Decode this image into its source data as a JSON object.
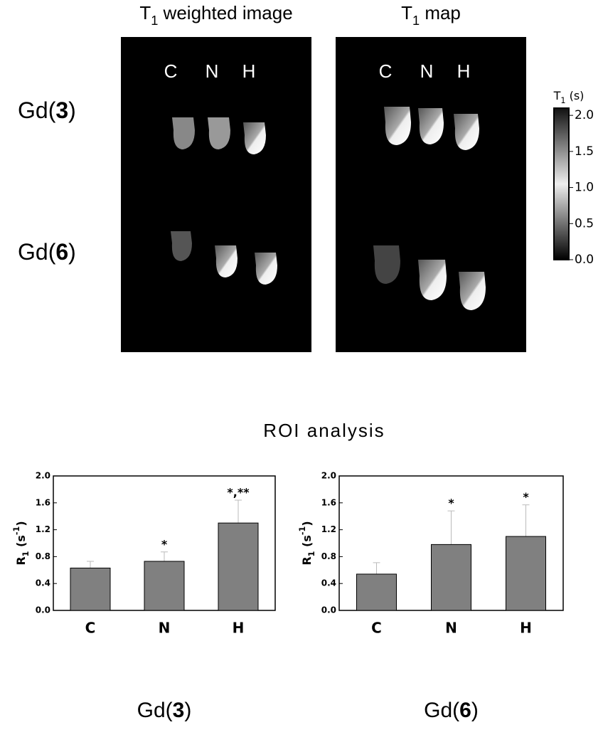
{
  "figure": {
    "columns": [
      {
        "title": [
          "T",
          "1",
          " weighted image"
        ]
      },
      {
        "title": [
          "T",
          "1",
          " map"
        ]
      }
    ],
    "lanes": [
      "C",
      "N",
      "H"
    ],
    "rows": [
      [
        "Gd(",
        "3",
        ")"
      ],
      [
        "Gd(",
        "6",
        ")"
      ]
    ],
    "colorbar": {
      "label": [
        "T",
        "1",
        " (s)"
      ],
      "lim": [
        0,
        2.1
      ],
      "ticks": [
        {
          "value": 0,
          "label": "0.0"
        },
        {
          "value": 0.5,
          "label": "0.5"
        },
        {
          "value": 1,
          "label": "1.0"
        },
        {
          "value": 1.5,
          "label": "1.5"
        },
        {
          "value": 2,
          "label": "2.0"
        }
      ]
    },
    "section_title": "ROI analysis"
  },
  "chart_data": [
    {
      "type": "bar",
      "categories": [
        "C",
        "N",
        "H"
      ],
      "values": [
        0.63,
        0.73,
        1.3
      ],
      "errors": [
        0.1,
        0.14,
        0.34
      ],
      "annotations": [
        null,
        "*",
        "*,**"
      ],
      "color": "#808080",
      "ylabel": [
        "R",
        "1",
        " (s",
        "-1",
        ")"
      ],
      "xlabel": [
        "Gd(",
        "3",
        ")"
      ],
      "ylim": [
        0,
        2
      ],
      "yticks": [
        {
          "value": 0,
          "label": "0.0"
        },
        {
          "value": 0.4,
          "label": "0.4"
        },
        {
          "value": 0.8,
          "label": "0.8"
        },
        {
          "value": 1.2,
          "label": "1.2"
        },
        {
          "value": 1.6,
          "label": "1.6"
        },
        {
          "value": 2,
          "label": "2.0"
        }
      ]
    },
    {
      "type": "bar",
      "categories": [
        "C",
        "N",
        "H"
      ],
      "values": [
        0.54,
        0.98,
        1.1
      ],
      "errors": [
        0.17,
        0.5,
        0.47
      ],
      "annotations": [
        null,
        "*",
        "*"
      ],
      "color": "#808080",
      "ylabel": [
        "R",
        "1",
        " (s",
        "-1",
        ")"
      ],
      "xlabel": [
        "Gd(",
        "6",
        ")"
      ],
      "ylim": [
        0,
        2
      ],
      "yticks": [
        {
          "value": 0,
          "label": "0.0"
        },
        {
          "value": 0.4,
          "label": "0.4"
        },
        {
          "value": 0.8,
          "label": "0.8"
        },
        {
          "value": 1.2,
          "label": "1.2"
        },
        {
          "value": 1.6,
          "label": "1.6"
        },
        {
          "value": 2,
          "label": "2.0"
        }
      ]
    }
  ]
}
